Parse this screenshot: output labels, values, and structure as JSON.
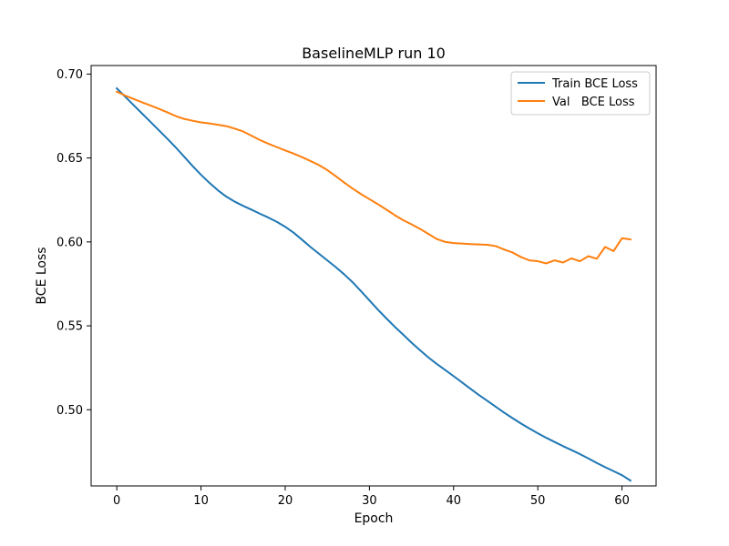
{
  "chart_data": {
    "type": "line",
    "title": "BaselineMLP run 10",
    "xlabel": "Epoch",
    "ylabel": "BCE Loss",
    "xlim": [
      -3.05,
      64.05
    ],
    "ylim": [
      0.4546,
      0.7051
    ],
    "xticks": [
      0,
      10,
      20,
      30,
      40,
      50,
      60
    ],
    "xtick_labels": [
      "0",
      "10",
      "20",
      "30",
      "40",
      "50",
      "60"
    ],
    "yticks": [
      0.5,
      0.55,
      0.6,
      0.65,
      0.7
    ],
    "ytick_labels": [
      "0.50",
      "0.55",
      "0.60",
      "0.65",
      "0.70"
    ],
    "grid": false,
    "legend_position": "top-right",
    "series": [
      {
        "name": "Train BCE Loss",
        "color": "#1f77b4",
        "x": [
          0,
          1,
          2,
          3,
          4,
          5,
          6,
          7,
          8,
          9,
          10,
          11,
          12,
          13,
          14,
          15,
          16,
          17,
          18,
          19,
          20,
          21,
          22,
          23,
          24,
          25,
          26,
          27,
          28,
          29,
          30,
          31,
          32,
          33,
          34,
          35,
          36,
          37,
          38,
          39,
          40,
          41,
          42,
          43,
          44,
          45,
          46,
          47,
          48,
          49,
          50,
          51,
          52,
          53,
          54,
          55,
          56,
          57,
          58,
          59,
          60,
          61
        ],
        "y": [
          0.6915,
          0.6865,
          0.6815,
          0.6765,
          0.6715,
          0.6665,
          0.6615,
          0.6563,
          0.6508,
          0.6452,
          0.64,
          0.6352,
          0.6308,
          0.627,
          0.624,
          0.6215,
          0.6192,
          0.6168,
          0.6145,
          0.612,
          0.609,
          0.6055,
          0.6013,
          0.597,
          0.593,
          0.589,
          0.585,
          0.5807,
          0.576,
          0.5707,
          0.5652,
          0.5597,
          0.5545,
          0.5495,
          0.5448,
          0.54,
          0.5355,
          0.5312,
          0.5273,
          0.5237,
          0.52,
          0.5163,
          0.5125,
          0.5088,
          0.5053,
          0.5018,
          0.4983,
          0.495,
          0.4918,
          0.4888,
          0.486,
          0.4833,
          0.4808,
          0.4783,
          0.476,
          0.4736,
          0.471,
          0.4683,
          0.4658,
          0.4634,
          0.461,
          0.4578
        ]
      },
      {
        "name": "Val   BCE Loss",
        "color": "#ff7f0e",
        "x": [
          0,
          1,
          2,
          3,
          4,
          5,
          6,
          7,
          8,
          9,
          10,
          11,
          12,
          13,
          14,
          15,
          16,
          17,
          18,
          19,
          20,
          21,
          22,
          23,
          24,
          25,
          26,
          27,
          28,
          29,
          30,
          31,
          32,
          33,
          34,
          35,
          36,
          37,
          38,
          39,
          40,
          41,
          42,
          43,
          44,
          45,
          46,
          47,
          48,
          49,
          50,
          51,
          52,
          53,
          54,
          55,
          56,
          57,
          58,
          59,
          60,
          61
        ],
        "y": [
          0.6895,
          0.6872,
          0.6852,
          0.6832,
          0.6813,
          0.6793,
          0.6772,
          0.675,
          0.6733,
          0.6722,
          0.6712,
          0.6706,
          0.6698,
          0.669,
          0.6675,
          0.6658,
          0.6633,
          0.6607,
          0.6585,
          0.6565,
          0.6545,
          0.6526,
          0.6505,
          0.6482,
          0.6458,
          0.6428,
          0.6392,
          0.6354,
          0.6318,
          0.6285,
          0.6255,
          0.6225,
          0.6193,
          0.616,
          0.613,
          0.6105,
          0.6078,
          0.6048,
          0.6017,
          0.6,
          0.5993,
          0.599,
          0.5987,
          0.5985,
          0.5983,
          0.5975,
          0.5955,
          0.5937,
          0.591,
          0.589,
          0.5885,
          0.5872,
          0.589,
          0.5877,
          0.5902,
          0.5885,
          0.5915,
          0.59,
          0.597,
          0.5945,
          0.6022,
          0.6015
        ]
      }
    ]
  }
}
